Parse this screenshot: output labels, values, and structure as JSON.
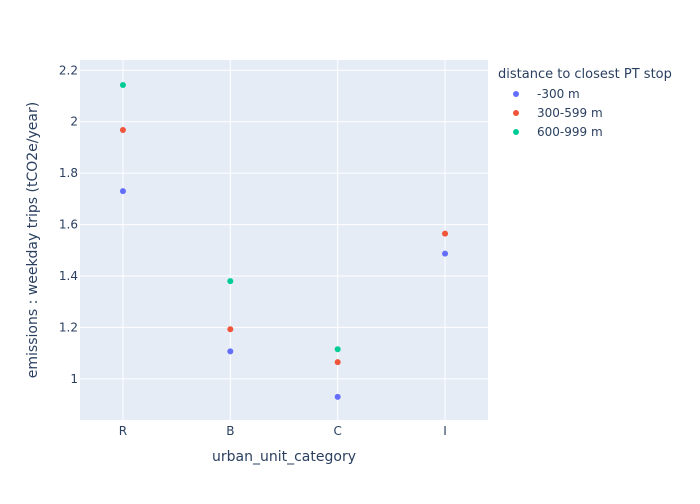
{
  "chart_data": {
    "type": "scatter",
    "xlabel": "urban_unit_category",
    "ylabel": "emissions : weekday trips (tCO2e/year)",
    "categories": [
      "R",
      "B",
      "C",
      "I"
    ],
    "ylim": [
      0.84,
      2.24
    ],
    "yticks": [
      1,
      1.2,
      1.4,
      1.6,
      1.8,
      2,
      2.2
    ],
    "grid": true,
    "legend_placement": "right",
    "legend_title": "distance to closest PT stop",
    "series": [
      {
        "name": "-300 m",
        "color": "#636efa",
        "values": [
          1.73,
          1.107,
          0.93,
          1.487
        ]
      },
      {
        "name": "300-599 m",
        "color": "#ef553b",
        "values": [
          1.968,
          1.193,
          1.065,
          1.565
        ]
      },
      {
        "name": "600-999 m",
        "color": "#00cc96",
        "values": [
          2.143,
          1.38,
          1.115,
          null
        ]
      }
    ]
  },
  "colors": {
    "plot_background": "#e5ecf6",
    "grid": "#ffffff",
    "text": "#2a3f5f"
  }
}
